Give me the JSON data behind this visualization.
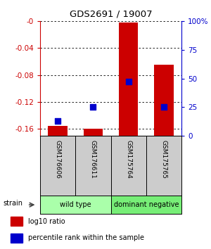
{
  "title": "GDS2691 / 19007",
  "samples": [
    "GSM176606",
    "GSM176611",
    "GSM175764",
    "GSM175765"
  ],
  "log10_ratio": [
    -0.155,
    -0.16,
    -0.002,
    -0.065
  ],
  "percentile_rank": [
    0.13,
    0.25,
    0.47,
    0.25
  ],
  "ylim_left": [
    -0.17,
    0.0
  ],
  "ylim_right": [
    0.0,
    1.0
  ],
  "yticks_left": [
    0.0,
    -0.04,
    -0.08,
    -0.12,
    -0.16
  ],
  "yticks_right": [
    0.0,
    0.25,
    0.5,
    0.75,
    1.0
  ],
  "ytick_labels_right": [
    "0",
    "25",
    "50",
    "75",
    "100%"
  ],
  "groups": [
    {
      "label": "wild type",
      "samples": [
        0,
        1
      ],
      "color": "#aaffaa"
    },
    {
      "label": "dominant negative",
      "samples": [
        2,
        3
      ],
      "color": "#77ee77"
    }
  ],
  "bar_color": "#cc0000",
  "dot_color": "#0000cc",
  "bar_width": 0.55,
  "dot_size": 40,
  "group_label": "strain",
  "legend_items": [
    {
      "color": "#cc0000",
      "label": "log10 ratio"
    },
    {
      "color": "#0000cc",
      "label": "percentile rank within the sample"
    }
  ],
  "sample_box_color": "#cccccc",
  "background_color": "#ffffff"
}
